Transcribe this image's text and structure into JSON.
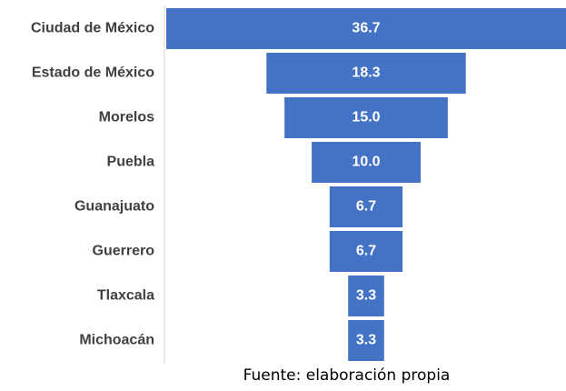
{
  "chart_data": {
    "type": "bar",
    "orientation": "horizontal-funnel",
    "categories": [
      "Ciudad de México",
      "Estado de México",
      "Morelos",
      "Puebla",
      "Guanajuato",
      "Guerrero",
      "Tlaxcala",
      "Michoacán"
    ],
    "values": [
      36.7,
      18.3,
      15.0,
      10.0,
      6.7,
      6.7,
      3.3,
      3.3
    ],
    "value_labels": [
      "36.7",
      "18.3",
      "15.0",
      "10.0",
      "6.7",
      "6.7",
      "3.3",
      "3.3"
    ],
    "colors": {
      "bar": "#4472C4",
      "label": "#404040",
      "axis": "#D9D9D9"
    }
  },
  "source_note": "Fuente: elaboración propia"
}
